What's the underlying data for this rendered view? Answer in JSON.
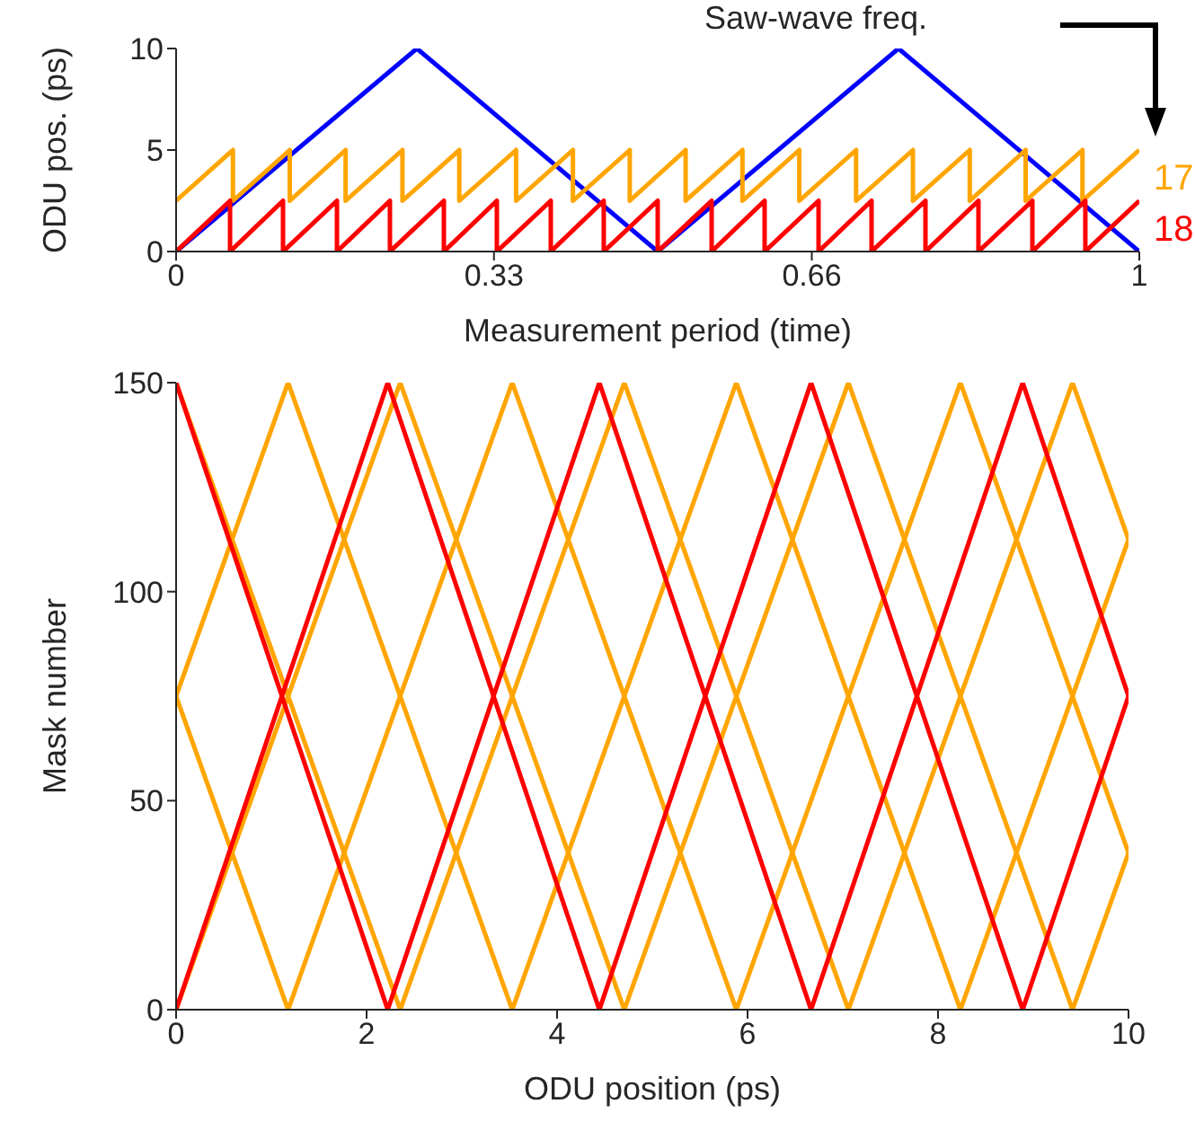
{
  "chart_data": [
    {
      "type": "line",
      "xlabel": "Measurement period (time)",
      "ylabel": "ODU pos. (ps)",
      "xlim": [
        0,
        1
      ],
      "xticks": [
        0,
        0.33,
        0.66,
        1
      ],
      "ylim": [
        0,
        10
      ],
      "yticks": [
        0,
        5,
        10
      ],
      "annotations": [
        "Saw-wave freq."
      ],
      "series": [
        {
          "color": "#0000ff",
          "x": [
            0,
            0.25,
            0.5,
            0.75,
            1
          ],
          "values": [
            0,
            10,
            0,
            10,
            0
          ]
        },
        {
          "name": "17",
          "color": "#ffa500",
          "x": [
            0,
            0.059,
            0.059,
            0.118,
            0.118,
            0.176,
            0.176,
            0.235,
            0.235,
            0.294,
            0.294,
            0.353,
            0.353,
            0.412,
            0.412,
            0.471,
            0.471,
            0.529,
            0.529,
            0.588,
            0.588,
            0.647,
            0.647,
            0.706,
            0.706,
            0.765,
            0.765,
            0.824,
            0.824,
            0.882,
            0.882,
            0.941,
            0.941,
            1
          ],
          "values": [
            2.5,
            5,
            2.5,
            5,
            2.5,
            5,
            2.5,
            5,
            2.5,
            5,
            2.5,
            5,
            2.5,
            5,
            2.5,
            5,
            2.5,
            5,
            2.5,
            5,
            2.5,
            5,
            2.5,
            5,
            2.5,
            5,
            2.5,
            5,
            2.5,
            5,
            2.5,
            5,
            2.5,
            5
          ]
        },
        {
          "name": "18",
          "color": "#ff0000",
          "x": [
            0,
            0.056,
            0.056,
            0.111,
            0.111,
            0.167,
            0.167,
            0.222,
            0.222,
            0.278,
            0.278,
            0.333,
            0.333,
            0.389,
            0.389,
            0.444,
            0.444,
            0.5,
            0.5,
            0.556,
            0.556,
            0.611,
            0.611,
            0.667,
            0.667,
            0.722,
            0.722,
            0.778,
            0.778,
            0.833,
            0.833,
            0.889,
            0.889,
            0.944,
            0.944,
            1
          ],
          "values": [
            0,
            2.5,
            0,
            2.5,
            0,
            2.5,
            0,
            2.5,
            0,
            2.5,
            0,
            2.5,
            0,
            2.5,
            0,
            2.5,
            0,
            2.5,
            0,
            2.5,
            0,
            2.5,
            0,
            2.5,
            0,
            2.5,
            0,
            2.5,
            0,
            2.5,
            0,
            2.5,
            0,
            2.5,
            0,
            2.5
          ]
        }
      ]
    },
    {
      "type": "line",
      "xlabel": "ODU position (ps)",
      "ylabel": "Mask number",
      "xlim": [
        0,
        10
      ],
      "xticks": [
        0,
        2,
        4,
        6,
        8,
        10
      ],
      "ylim": [
        0,
        150
      ],
      "yticks": [
        0,
        50,
        100,
        150
      ],
      "series": [
        {
          "color": "#ffa500",
          "x": [
            0,
            1.176,
            3.529,
            5.882,
            8.235,
            10
          ],
          "values": [
            75,
            150,
            0,
            150,
            0,
            112.5
          ]
        },
        {
          "color": "#ffa500",
          "x": [
            0,
            1.176,
            3.529,
            5.882,
            8.235,
            10
          ],
          "values": [
            75,
            0,
            150,
            0,
            150,
            37.5
          ]
        },
        {
          "color": "#ffa500",
          "x": [
            0,
            2.353,
            4.706,
            7.059,
            9.412,
            10
          ],
          "values": [
            0,
            150,
            0,
            150,
            0,
            37.5
          ]
        },
        {
          "color": "#ffa500",
          "x": [
            0,
            2.353,
            4.706,
            7.059,
            9.412,
            10
          ],
          "values": [
            150,
            0,
            150,
            0,
            150,
            112.5
          ]
        },
        {
          "color": "#ff0000",
          "x": [
            0,
            2.222,
            4.444,
            6.667,
            8.889,
            10
          ],
          "values": [
            0,
            150,
            0,
            150,
            0,
            75
          ]
        },
        {
          "color": "#ff0000",
          "x": [
            0,
            2.222,
            4.444,
            6.667,
            8.889,
            10
          ],
          "values": [
            150,
            0,
            150,
            0,
            150,
            75
          ]
        }
      ]
    }
  ]
}
